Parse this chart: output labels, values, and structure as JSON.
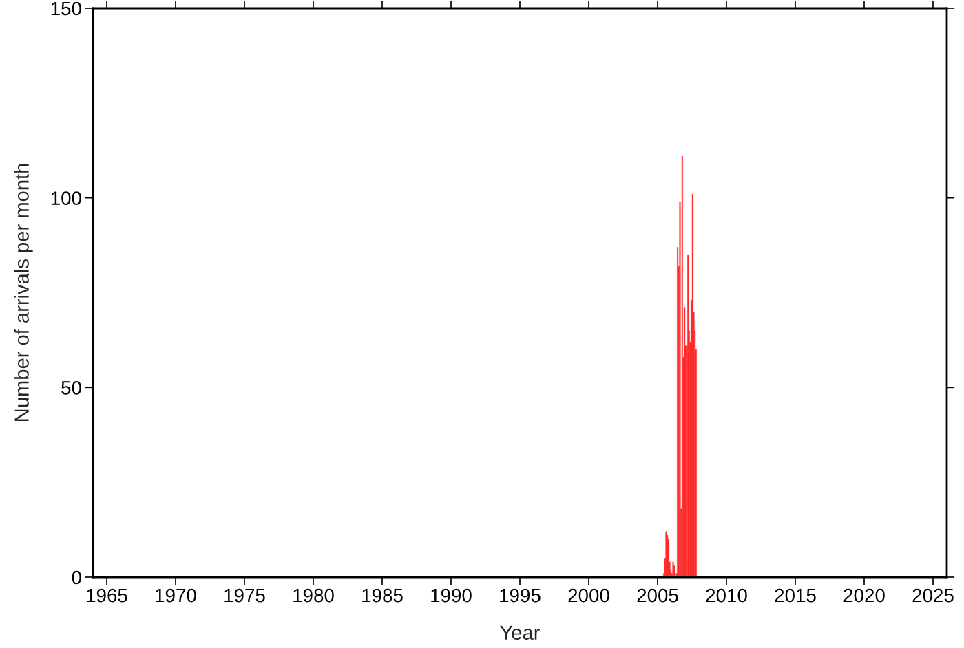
{
  "chart_data": {
    "type": "bar",
    "xlabel": "Year",
    "ylabel": "Number of arrivals per month",
    "x": [
      2005.458,
      2005.542,
      2005.625,
      2005.708,
      2005.792,
      2005.875,
      2005.958,
      2006.042,
      2006.125,
      2006.208,
      2006.292,
      2006.375,
      2006.458,
      2006.542,
      2006.625,
      2006.708,
      2006.792,
      2006.875,
      2006.958,
      2007.042,
      2007.125,
      2007.208,
      2007.292,
      2007.375,
      2007.458,
      2007.542,
      2007.625,
      2007.708,
      2007.792
    ],
    "values": [
      1,
      5,
      12,
      11,
      10,
      4,
      2,
      1,
      4,
      3,
      0,
      1,
      87,
      82,
      99,
      18,
      111,
      58,
      71,
      61,
      61,
      85,
      65,
      62,
      73,
      101,
      70,
      65,
      60
    ],
    "color": "#ff2a2a",
    "xlim": [
      1964,
      2026
    ],
    "xticks": [
      1965,
      1970,
      1975,
      1980,
      1985,
      1990,
      1995,
      2000,
      2005,
      2010,
      2015,
      2020,
      2025
    ],
    "ylim": [
      0,
      150
    ],
    "yticks": [
      0,
      50,
      100,
      150
    ],
    "grid": false
  }
}
